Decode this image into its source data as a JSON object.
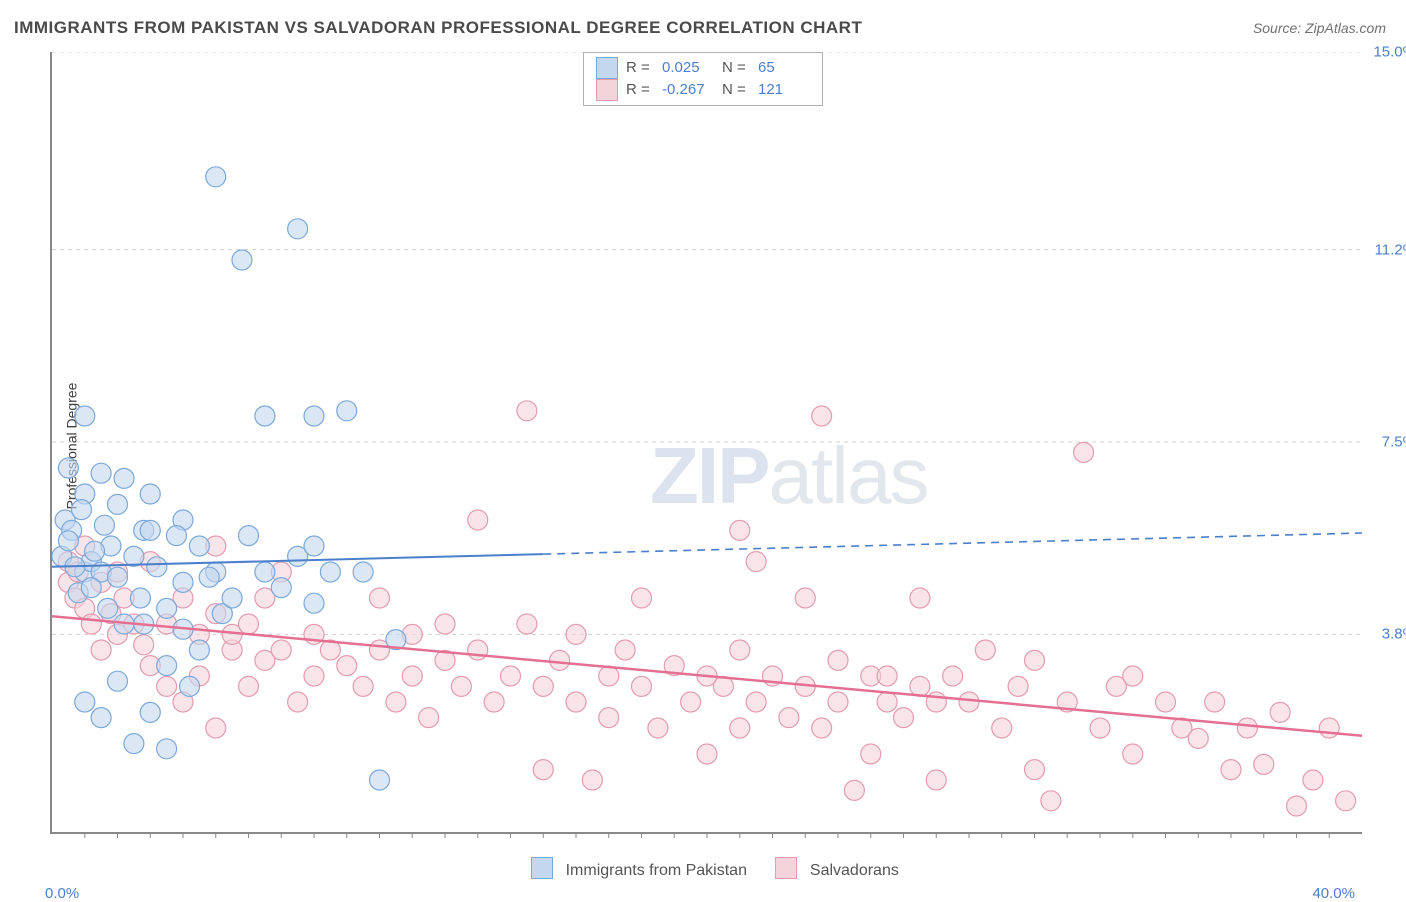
{
  "title": "IMMIGRANTS FROM PAKISTAN VS SALVADORAN PROFESSIONAL DEGREE CORRELATION CHART",
  "source": "Source: ZipAtlas.com",
  "watermark_zip": "ZIP",
  "watermark_atlas": "atlas",
  "ylabel": "Professional Degree",
  "chart": {
    "type": "scatter",
    "xlim": [
      0,
      40
    ],
    "ylim": [
      0,
      15
    ],
    "x_tick_left": "0.0%",
    "x_tick_right": "40.0%",
    "y_gridlines": [
      {
        "value": 3.8,
        "label": "3.8%"
      },
      {
        "value": 7.5,
        "label": "7.5%"
      },
      {
        "value": 11.2,
        "label": "11.2%"
      },
      {
        "value": 15.0,
        "label": "15.0%"
      }
    ],
    "x_tick_positions": [
      1,
      2,
      3,
      4,
      5,
      6,
      7,
      8,
      9,
      10,
      11,
      12,
      13,
      14,
      15,
      16,
      17,
      18,
      19,
      20,
      21,
      22,
      23,
      24,
      25,
      26,
      27,
      28,
      29,
      30,
      31,
      32,
      33,
      34,
      35,
      36,
      37,
      38,
      39
    ],
    "background_color": "#ffffff",
    "grid_color": "#d0d0d0",
    "series": {
      "pakistan": {
        "label": "Immigrants from Pakistan",
        "marker_fill": "#c3d7ef",
        "marker_stroke": "#7ba8db",
        "marker_radius": 10,
        "line_color": "#4b7ecb",
        "line_width": 2,
        "r_value": "0.025",
        "n_value": "65",
        "trend": {
          "y_at_x0": 5.1,
          "y_at_xmax": 5.75,
          "solid_until_x": 15
        },
        "points": [
          [
            0.3,
            5.3
          ],
          [
            0.4,
            6.0
          ],
          [
            0.5,
            7.0
          ],
          [
            0.6,
            5.8
          ],
          [
            0.8,
            4.6
          ],
          [
            0.5,
            5.6
          ],
          [
            1.0,
            6.5
          ],
          [
            1.0,
            5.0
          ],
          [
            1.0,
            8.0
          ],
          [
            1.2,
            5.2
          ],
          [
            1.5,
            6.9
          ],
          [
            1.5,
            5.0
          ],
          [
            1.7,
            4.3
          ],
          [
            1.8,
            5.5
          ],
          [
            2.0,
            6.3
          ],
          [
            2.0,
            4.9
          ],
          [
            2.2,
            6.8
          ],
          [
            2.2,
            4.0
          ],
          [
            2.5,
            5.3
          ],
          [
            2.7,
            4.5
          ],
          [
            2.8,
            5.8
          ],
          [
            3.0,
            6.5
          ],
          [
            3.0,
            2.3
          ],
          [
            3.2,
            5.1
          ],
          [
            3.5,
            4.3
          ],
          [
            3.5,
            3.2
          ],
          [
            4.0,
            6.0
          ],
          [
            4.0,
            4.8
          ],
          [
            4.2,
            2.8
          ],
          [
            4.5,
            5.5
          ],
          [
            4.5,
            3.5
          ],
          [
            5.0,
            12.6
          ],
          [
            5.0,
            5.0
          ],
          [
            5.2,
            4.2
          ],
          [
            5.5,
            4.5
          ],
          [
            5.8,
            11.0
          ],
          [
            6.0,
            5.7
          ],
          [
            6.5,
            5.0
          ],
          [
            6.5,
            8.0
          ],
          [
            7.0,
            4.7
          ],
          [
            7.5,
            11.6
          ],
          [
            7.5,
            5.3
          ],
          [
            8.0,
            5.5
          ],
          [
            8.0,
            4.4
          ],
          [
            8.0,
            8.0
          ],
          [
            8.5,
            5.0
          ],
          [
            9.0,
            8.1
          ],
          [
            9.5,
            5.0
          ],
          [
            10.0,
            1.0
          ],
          [
            10.5,
            3.7
          ],
          [
            1.0,
            2.5
          ],
          [
            1.5,
            2.2
          ],
          [
            2.0,
            2.9
          ],
          [
            2.5,
            1.7
          ],
          [
            3.0,
            5.8
          ],
          [
            3.5,
            1.6
          ],
          [
            4.0,
            3.9
          ],
          [
            1.2,
            4.7
          ],
          [
            0.7,
            5.1
          ],
          [
            0.9,
            6.2
          ],
          [
            1.3,
            5.4
          ],
          [
            1.6,
            5.9
          ],
          [
            2.8,
            4.0
          ],
          [
            3.8,
            5.7
          ],
          [
            4.8,
            4.9
          ]
        ]
      },
      "salvadoran": {
        "label": "Salvadorans",
        "marker_fill": "#f5d3db",
        "marker_stroke": "#e39bb0",
        "marker_radius": 10,
        "line_color": "#e56f92",
        "line_width": 2.5,
        "r_value": "-0.267",
        "n_value": "121",
        "trend": {
          "y_at_x0": 4.15,
          "y_at_xmax": 1.85,
          "solid_until_x": 40
        },
        "points": [
          [
            0.5,
            4.8
          ],
          [
            0.5,
            5.2
          ],
          [
            0.7,
            4.5
          ],
          [
            0.8,
            5.0
          ],
          [
            1.0,
            4.3
          ],
          [
            1.0,
            5.5
          ],
          [
            1.2,
            4.0
          ],
          [
            1.5,
            4.8
          ],
          [
            1.5,
            3.5
          ],
          [
            1.8,
            4.2
          ],
          [
            2.0,
            5.0
          ],
          [
            2.0,
            3.8
          ],
          [
            2.2,
            4.5
          ],
          [
            2.5,
            4.0
          ],
          [
            2.8,
            3.6
          ],
          [
            3.0,
            5.2
          ],
          [
            3.0,
            3.2
          ],
          [
            3.5,
            4.0
          ],
          [
            3.5,
            2.8
          ],
          [
            4.0,
            4.5
          ],
          [
            4.0,
            2.5
          ],
          [
            4.5,
            3.8
          ],
          [
            4.5,
            3.0
          ],
          [
            5.0,
            5.5
          ],
          [
            5.0,
            4.2
          ],
          [
            5.0,
            2.0
          ],
          [
            5.5,
            3.5
          ],
          [
            5.5,
            3.8
          ],
          [
            6.0,
            4.0
          ],
          [
            6.0,
            2.8
          ],
          [
            6.5,
            3.3
          ],
          [
            6.5,
            4.5
          ],
          [
            7.0,
            3.5
          ],
          [
            7.0,
            5.0
          ],
          [
            7.5,
            2.5
          ],
          [
            8.0,
            3.8
          ],
          [
            8.0,
            3.0
          ],
          [
            8.5,
            3.5
          ],
          [
            9.0,
            3.2
          ],
          [
            9.5,
            2.8
          ],
          [
            10.0,
            3.5
          ],
          [
            10.0,
            4.5
          ],
          [
            10.5,
            2.5
          ],
          [
            11.0,
            3.0
          ],
          [
            11.0,
            3.8
          ],
          [
            11.5,
            2.2
          ],
          [
            12.0,
            3.3
          ],
          [
            12.0,
            4.0
          ],
          [
            12.5,
            2.8
          ],
          [
            13.0,
            3.5
          ],
          [
            13.0,
            6.0
          ],
          [
            13.5,
            2.5
          ],
          [
            14.0,
            3.0
          ],
          [
            14.5,
            4.0
          ],
          [
            14.5,
            8.1
          ],
          [
            15.0,
            2.8
          ],
          [
            15.0,
            1.2
          ],
          [
            15.5,
            3.3
          ],
          [
            16.0,
            2.5
          ],
          [
            16.0,
            3.8
          ],
          [
            16.5,
            1.0
          ],
          [
            17.0,
            3.0
          ],
          [
            17.0,
            2.2
          ],
          [
            17.5,
            3.5
          ],
          [
            18.0,
            2.8
          ],
          [
            18.0,
            4.5
          ],
          [
            18.5,
            2.0
          ],
          [
            19.0,
            3.2
          ],
          [
            19.5,
            2.5
          ],
          [
            20.0,
            3.0
          ],
          [
            20.0,
            1.5
          ],
          [
            20.5,
            2.8
          ],
          [
            21.0,
            3.5
          ],
          [
            21.0,
            5.8
          ],
          [
            21.0,
            2.0
          ],
          [
            21.5,
            5.2
          ],
          [
            21.5,
            2.5
          ],
          [
            22.0,
            3.0
          ],
          [
            22.5,
            2.2
          ],
          [
            23.0,
            2.8
          ],
          [
            23.0,
            4.5
          ],
          [
            23.5,
            2.0
          ],
          [
            23.5,
            8.0
          ],
          [
            24.0,
            3.3
          ],
          [
            24.0,
            2.5
          ],
          [
            24.5,
            0.8
          ],
          [
            25.0,
            3.0
          ],
          [
            25.0,
            1.5
          ],
          [
            25.5,
            2.5
          ],
          [
            25.5,
            3.0
          ],
          [
            26.0,
            2.2
          ],
          [
            26.5,
            2.8
          ],
          [
            26.5,
            4.5
          ],
          [
            27.0,
            2.5
          ],
          [
            27.0,
            1.0
          ],
          [
            27.5,
            3.0
          ],
          [
            28.0,
            2.5
          ],
          [
            28.5,
            3.5
          ],
          [
            29.0,
            2.0
          ],
          [
            29.5,
            2.8
          ],
          [
            30.0,
            1.2
          ],
          [
            30.0,
            3.3
          ],
          [
            30.5,
            0.6
          ],
          [
            31.0,
            2.5
          ],
          [
            31.5,
            7.3
          ],
          [
            32.0,
            2.0
          ],
          [
            32.5,
            2.8
          ],
          [
            33.0,
            3.0
          ],
          [
            33.0,
            1.5
          ],
          [
            34.0,
            2.5
          ],
          [
            34.5,
            2.0
          ],
          [
            35.0,
            1.8
          ],
          [
            35.5,
            2.5
          ],
          [
            36.0,
            1.2
          ],
          [
            36.5,
            2.0
          ],
          [
            37.0,
            1.3
          ],
          [
            37.5,
            2.3
          ],
          [
            38.0,
            0.5
          ],
          [
            38.5,
            1.0
          ],
          [
            39.0,
            2.0
          ],
          [
            39.5,
            0.6
          ]
        ]
      }
    }
  },
  "legend_top": {
    "r_label": "R  =",
    "n_label": "N  ="
  }
}
